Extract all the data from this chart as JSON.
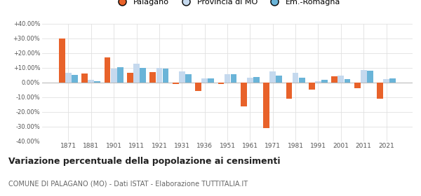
{
  "years": [
    1871,
    1881,
    1901,
    1911,
    1921,
    1931,
    1936,
    1951,
    1961,
    1971,
    1981,
    1991,
    2001,
    2011,
    2021
  ],
  "palagano": [
    30.0,
    6.0,
    17.0,
    6.5,
    7.0,
    -1.0,
    -6.0,
    -1.0,
    -16.5,
    -31.0,
    -11.0,
    -5.0,
    4.0,
    -4.0,
    -11.0
  ],
  "provincia_mo": [
    6.5,
    1.5,
    9.5,
    12.5,
    10.0,
    7.5,
    2.5,
    5.5,
    3.0,
    7.5,
    6.5,
    1.0,
    4.5,
    8.5,
    2.0
  ],
  "em_romagna": [
    5.0,
    1.0,
    10.5,
    10.0,
    9.5,
    5.5,
    2.5,
    5.5,
    3.5,
    4.5,
    3.0,
    1.5,
    2.0,
    8.0,
    2.5
  ],
  "color_palagano": "#e8622a",
  "color_provincia": "#c5d9ee",
  "color_emromagna": "#6ab4d8",
  "title": "Variazione percentuale della popolazione ai censimenti",
  "subtitle": "COMUNE DI PALAGANO (MO) - Dati ISTAT - Elaborazione TUTTITALIA.IT",
  "ylim": [
    -40,
    40
  ],
  "yticks": [
    -40,
    -30,
    -20,
    -10,
    0,
    10,
    20,
    30,
    40
  ],
  "background_color": "#ffffff",
  "grid_color": "#e0e0e0",
  "legend_labels": [
    "Palagano",
    "Provincia di MO",
    "Em.-Romagna"
  ]
}
